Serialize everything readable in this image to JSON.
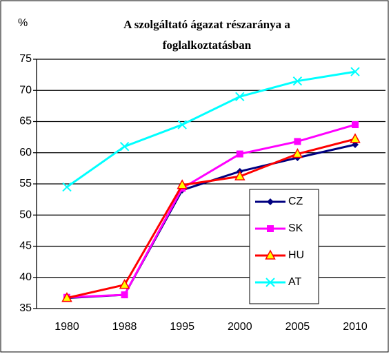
{
  "chart_data": {
    "type": "line",
    "title": [
      "A szolgáltató ágazat részaránya a",
      "foglalkoztatásban"
    ],
    "y_label": "%",
    "categories": [
      "1980",
      "1988",
      "1995",
      "2000",
      "2005",
      "2010"
    ],
    "series": [
      {
        "name": "CZ",
        "color": "#000080",
        "marker": "diamond",
        "values": [
          36.7,
          37.2,
          54,
          57,
          59.2,
          61.3
        ]
      },
      {
        "name": "SK",
        "color": "#ff00ff",
        "marker": "square",
        "values": [
          36.8,
          37.2,
          54.3,
          59.8,
          61.8,
          64.5
        ]
      },
      {
        "name": "HU",
        "color": "#ff0000",
        "marker": "triangle",
        "values": [
          36.7,
          38.8,
          54.8,
          56.2,
          59.8,
          62.2
        ]
      },
      {
        "name": "AT",
        "color": "#00ffff",
        "marker": "x",
        "values": [
          54.5,
          61,
          64.5,
          69,
          71.5,
          73
        ]
      }
    ],
    "ylim": [
      35,
      75
    ],
    "yticks": [
      35,
      40,
      45,
      50,
      55,
      60,
      65,
      70,
      75
    ],
    "grid": true
  }
}
